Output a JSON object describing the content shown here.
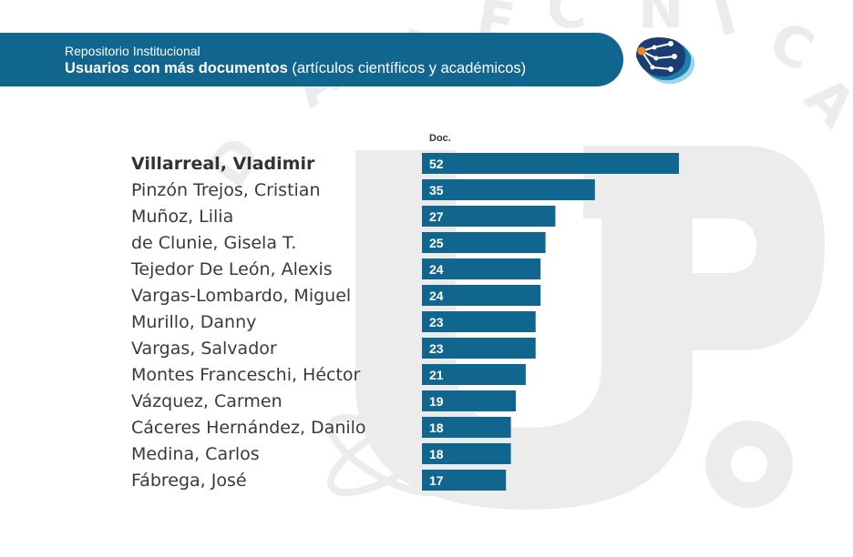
{
  "header": {
    "subtitle": "Repositorio Institucional",
    "title_main": "Usuarios con más documentos ",
    "title_paren": "(artículos científicos y académicos)",
    "logo_icon": "network-brain-icon"
  },
  "colors": {
    "header": "#10668f",
    "bar": "#10668f",
    "watermark": "#ececec",
    "logo_orange": "#f08a24"
  },
  "chart_data": {
    "type": "bar",
    "orientation": "horizontal",
    "title": "Usuarios con más documentos (artículos científicos y académicos)",
    "value_label": "Doc.",
    "categories": [
      "Villarreal, Vladimir",
      "Pinzón Trejos, Cristian",
      "Muñoz, Lilia",
      "de Clunie, Gisela T.",
      "Tejedor De León, Alexis",
      "Vargas-Lombardo, Miguel",
      "Murillo, Danny",
      "Vargas, Salvador",
      "Montes Franceschi, Héctor",
      "Vázquez, Carmen",
      "Cáceres Hernández, Danilo",
      "Medina, Carlos",
      "Fábrega, José"
    ],
    "values": [
      52,
      35,
      27,
      25,
      24,
      24,
      23,
      23,
      21,
      19,
      18,
      18,
      17
    ],
    "xlim": [
      0,
      52
    ]
  }
}
